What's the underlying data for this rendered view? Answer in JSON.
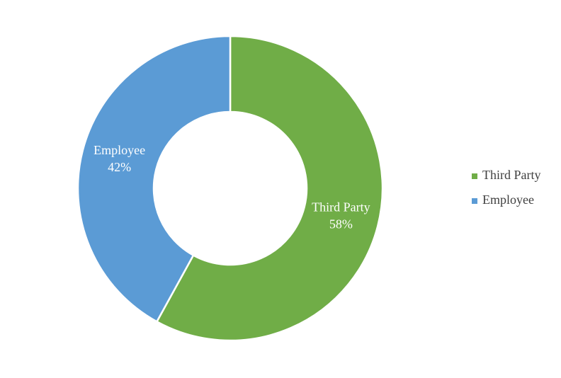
{
  "chart_data": {
    "type": "donut",
    "categories": [
      "Third Party",
      "Employee"
    ],
    "values": [
      58,
      42
    ],
    "value_labels": [
      "58%",
      "42%"
    ],
    "colors": [
      "#70ad47",
      "#5b9bd5"
    ],
    "legend": "right"
  }
}
